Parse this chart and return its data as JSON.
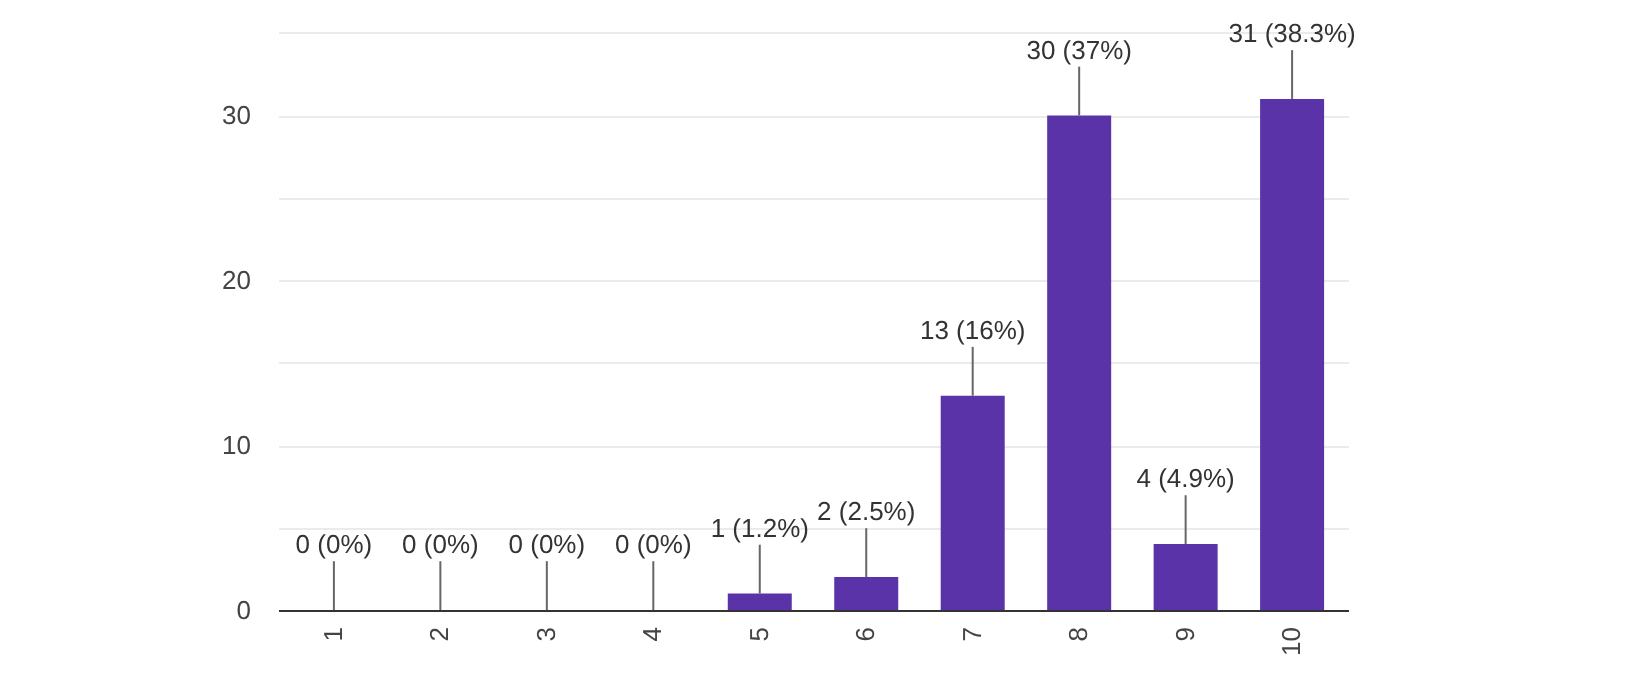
{
  "chart_data": {
    "type": "bar",
    "categories": [
      "1",
      "2",
      "3",
      "4",
      "5",
      "6",
      "7",
      "8",
      "9",
      "10"
    ],
    "values": [
      0,
      0,
      0,
      0,
      1,
      2,
      13,
      30,
      4,
      31
    ],
    "color": "#5a33a8",
    "value_labels": [
      "0 (0%)",
      "0 (0%)",
      "0 (0%)",
      "0 (0%)",
      "1 (1.2%)",
      "2 (2.5%)",
      "13 (16%)",
      "30 (37%)",
      "4 (4.9%)",
      "31 (38.3%)"
    ],
    "ylim": [
      0,
      37
    ],
    "yticks": [
      0,
      10,
      20,
      30,
      {
        "value": 5,
        "label": null
      },
      {
        "value": 15,
        "label": null
      },
      {
        "value": 25,
        "label": null
      },
      {
        "value": 35,
        "label": null
      }
    ],
    "grid": "y"
  }
}
